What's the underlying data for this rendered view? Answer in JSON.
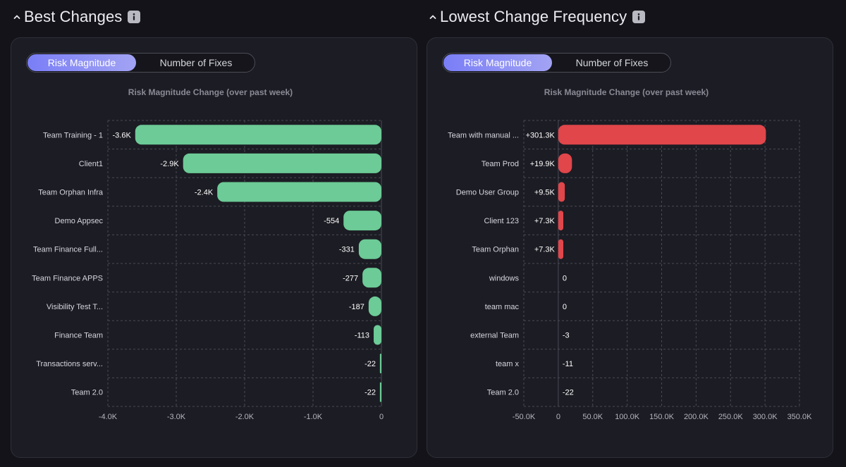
{
  "colors": {
    "positive_change": "#e0464a",
    "negative_change": "#6ccb96",
    "accent": "#8f91f5"
  },
  "sections": [
    {
      "title": "Best Changes",
      "collapse_icon": "chevron-up-icon",
      "info_icon": "info-icon",
      "toggle": {
        "active": "Risk Magnitude",
        "inactive": "Number of Fixes"
      }
    },
    {
      "title": "Lowest Change Frequency",
      "collapse_icon": "chevron-up-icon",
      "info_icon": "info-icon",
      "toggle": {
        "active": "Risk Magnitude",
        "inactive": "Number of Fixes"
      }
    }
  ],
  "chart_data": [
    {
      "type": "bar",
      "orientation": "horizontal",
      "title": "Risk Magnitude Change (over past week)",
      "categories": [
        "Team Training - 1",
        "Client1",
        "Team Orphan Infra",
        "Demo Appsec",
        "Team Finance Full...",
        "Team Finance APPS",
        "Visibility Test T...",
        "Finance Team",
        "Transactions serv...",
        "Team 2.0"
      ],
      "values": [
        -3600,
        -2900,
        -2400,
        -554,
        -331,
        -277,
        -187,
        -113,
        -22,
        -22
      ],
      "value_labels": [
        "-3.6K",
        "-2.9K",
        "-2.4K",
        "-554",
        "-331",
        "-277",
        "-187",
        "-113",
        "-22",
        "-22"
      ],
      "xlim": [
        -4000,
        0
      ],
      "x_ticks": [
        -4000,
        -3000,
        -2000,
        -1000,
        0
      ],
      "x_tick_labels": [
        "-4.0K",
        "-3.0K",
        "-2.0K",
        "-1.0K",
        "0"
      ],
      "grid": true,
      "bar_color": "#6ccb96"
    },
    {
      "type": "bar",
      "orientation": "horizontal",
      "title": "Risk Magnitude Change (over past week)",
      "categories": [
        "Team with manual ...",
        "Team Prod",
        "Demo User Group",
        "Client 123",
        "Team Orphan",
        "windows",
        "team mac",
        "external Team",
        "team x",
        "Team 2.0"
      ],
      "values": [
        301300,
        19900,
        9500,
        7300,
        7300,
        0,
        0,
        -3,
        -11,
        -22
      ],
      "value_labels": [
        "+301.3K",
        "+19.9K",
        "+9.5K",
        "+7.3K",
        "+7.3K",
        "0",
        "0",
        "-3",
        "-11",
        "-22"
      ],
      "xlim": [
        -50000,
        350000
      ],
      "x_ticks": [
        -50000,
        0,
        50000,
        100000,
        150000,
        200000,
        250000,
        300000,
        350000
      ],
      "x_tick_labels": [
        "-50.0K",
        "0",
        "50.0K",
        "100.0K",
        "150.0K",
        "200.0K",
        "250.0K",
        "300.0K",
        "350.0K"
      ],
      "grid": true,
      "bar_color": "#e0464a"
    }
  ]
}
